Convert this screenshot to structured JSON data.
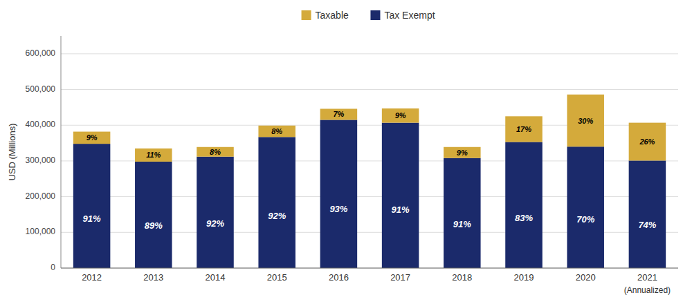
{
  "chart_data": {
    "type": "bar",
    "stacked": true,
    "categories": [
      "2012",
      "2013",
      "2014",
      "2015",
      "2016",
      "2017",
      "2018",
      "2019",
      "2020",
      "2021"
    ],
    "series": [
      {
        "name": "Tax Exempt",
        "color": "#1b2a6b",
        "values": [
          348000,
          298000,
          312000,
          367000,
          415000,
          407000,
          308000,
          353000,
          340000,
          301000
        ],
        "share_labels": [
          "91%",
          "89%",
          "92%",
          "92%",
          "93%",
          "91%",
          "91%",
          "83%",
          "70%",
          "74%"
        ]
      },
      {
        "name": "Taxable",
        "color": "#d4aa3b",
        "values": [
          34000,
          37000,
          27000,
          32000,
          31000,
          40000,
          31000,
          72000,
          146000,
          106000
        ],
        "share_labels": [
          "9%",
          "11%",
          "8%",
          "8%",
          "7%",
          "9%",
          "9%",
          "17%",
          "30%",
          "26%"
        ]
      }
    ],
    "y_label": "USD (Millions)",
    "annotations": [
      "(Annualized)"
    ],
    "ylim": [
      0,
      650000
    ],
    "yticks": [
      0,
      {
        "value": 100000,
        "label": "100,000"
      },
      {
        "value": 200000,
        "label": "200,000"
      },
      {
        "value": 300000,
        "label": "300,000"
      },
      {
        "value": 400000,
        "label": "400,000"
      },
      {
        "value": 500000,
        "label": "500,000"
      },
      {
        "value": 600000,
        "label": "600,000"
      }
    ],
    "grid": true,
    "legend": "top"
  }
}
